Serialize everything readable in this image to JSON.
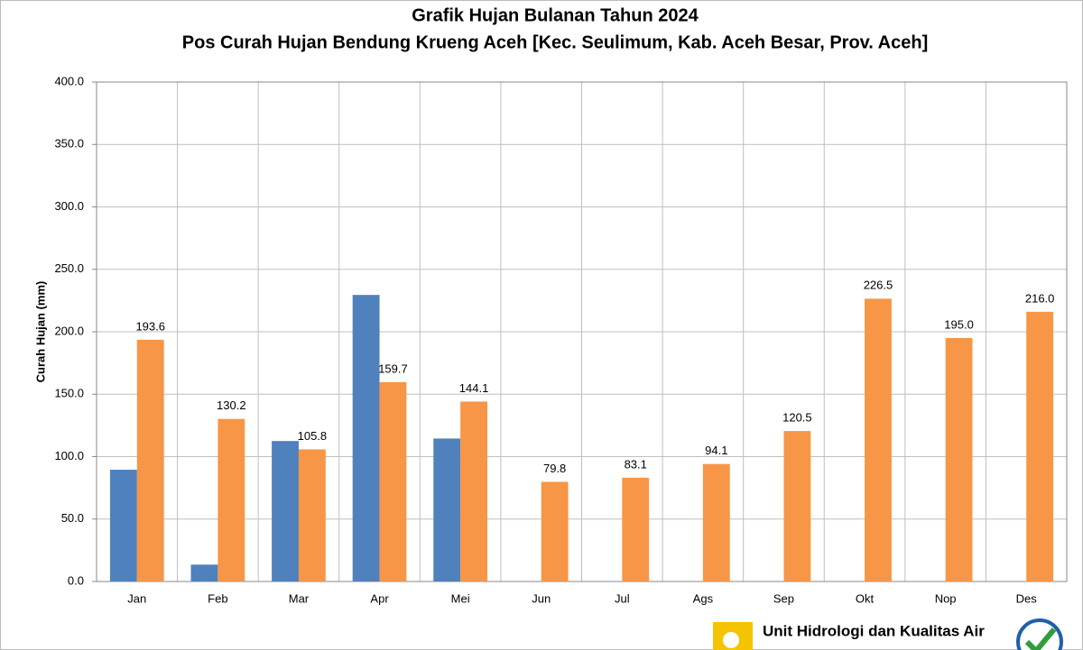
{
  "chart_data": {
    "type": "bar",
    "title": "Grafik Hujan Bulanan Tahun 2024",
    "subtitle": "Pos Curah Hujan Bendung Krueng Aceh [Kec. Seulimum, Kab. Aceh Besar, Prov. Aceh]",
    "y_label": "Curah Hujan (mm)",
    "footer": "Unit Hidrologi dan Kualitas Air",
    "categories": [
      "Jan",
      "Feb",
      "Mar",
      "Apr",
      "Mei",
      "Jun",
      "Jul",
      "Ags",
      "Sep",
      "Okt",
      "Nop",
      "Des"
    ],
    "series": [
      {
        "color": "#4f81bd",
        "values": [
          89.5,
          13.5,
          112.5,
          229.5,
          114.5,
          null,
          null,
          null,
          null,
          null,
          null,
          null
        ]
      },
      {
        "color": "#f79646",
        "values": [
          193.6,
          130.2,
          105.8,
          159.7,
          144.1,
          79.8,
          83.1,
          94.1,
          120.5,
          226.5,
          195.0,
          216.0
        ],
        "value_labels": [
          "193.6",
          "130.2",
          "105.8",
          "159.7",
          "144.1",
          "79.8",
          "83.1",
          "94.1",
          "120.5",
          "226.5",
          "195.0",
          "216.0"
        ]
      }
    ],
    "ylim": [
      0,
      400
    ],
    "yticks": [
      {
        "value": 0,
        "label": "0.0"
      },
      {
        "value": 50,
        "label": "50.0"
      },
      {
        "value": 100,
        "label": "100.0"
      },
      {
        "value": 150,
        "label": "150.0"
      },
      {
        "value": 200,
        "label": "200.0"
      },
      {
        "value": 250,
        "label": "250.0"
      },
      {
        "value": 300,
        "label": "300.0"
      },
      {
        "value": 350,
        "label": "350.0"
      },
      {
        "value": 400,
        "label": "400.0"
      }
    ],
    "grid": true
  }
}
